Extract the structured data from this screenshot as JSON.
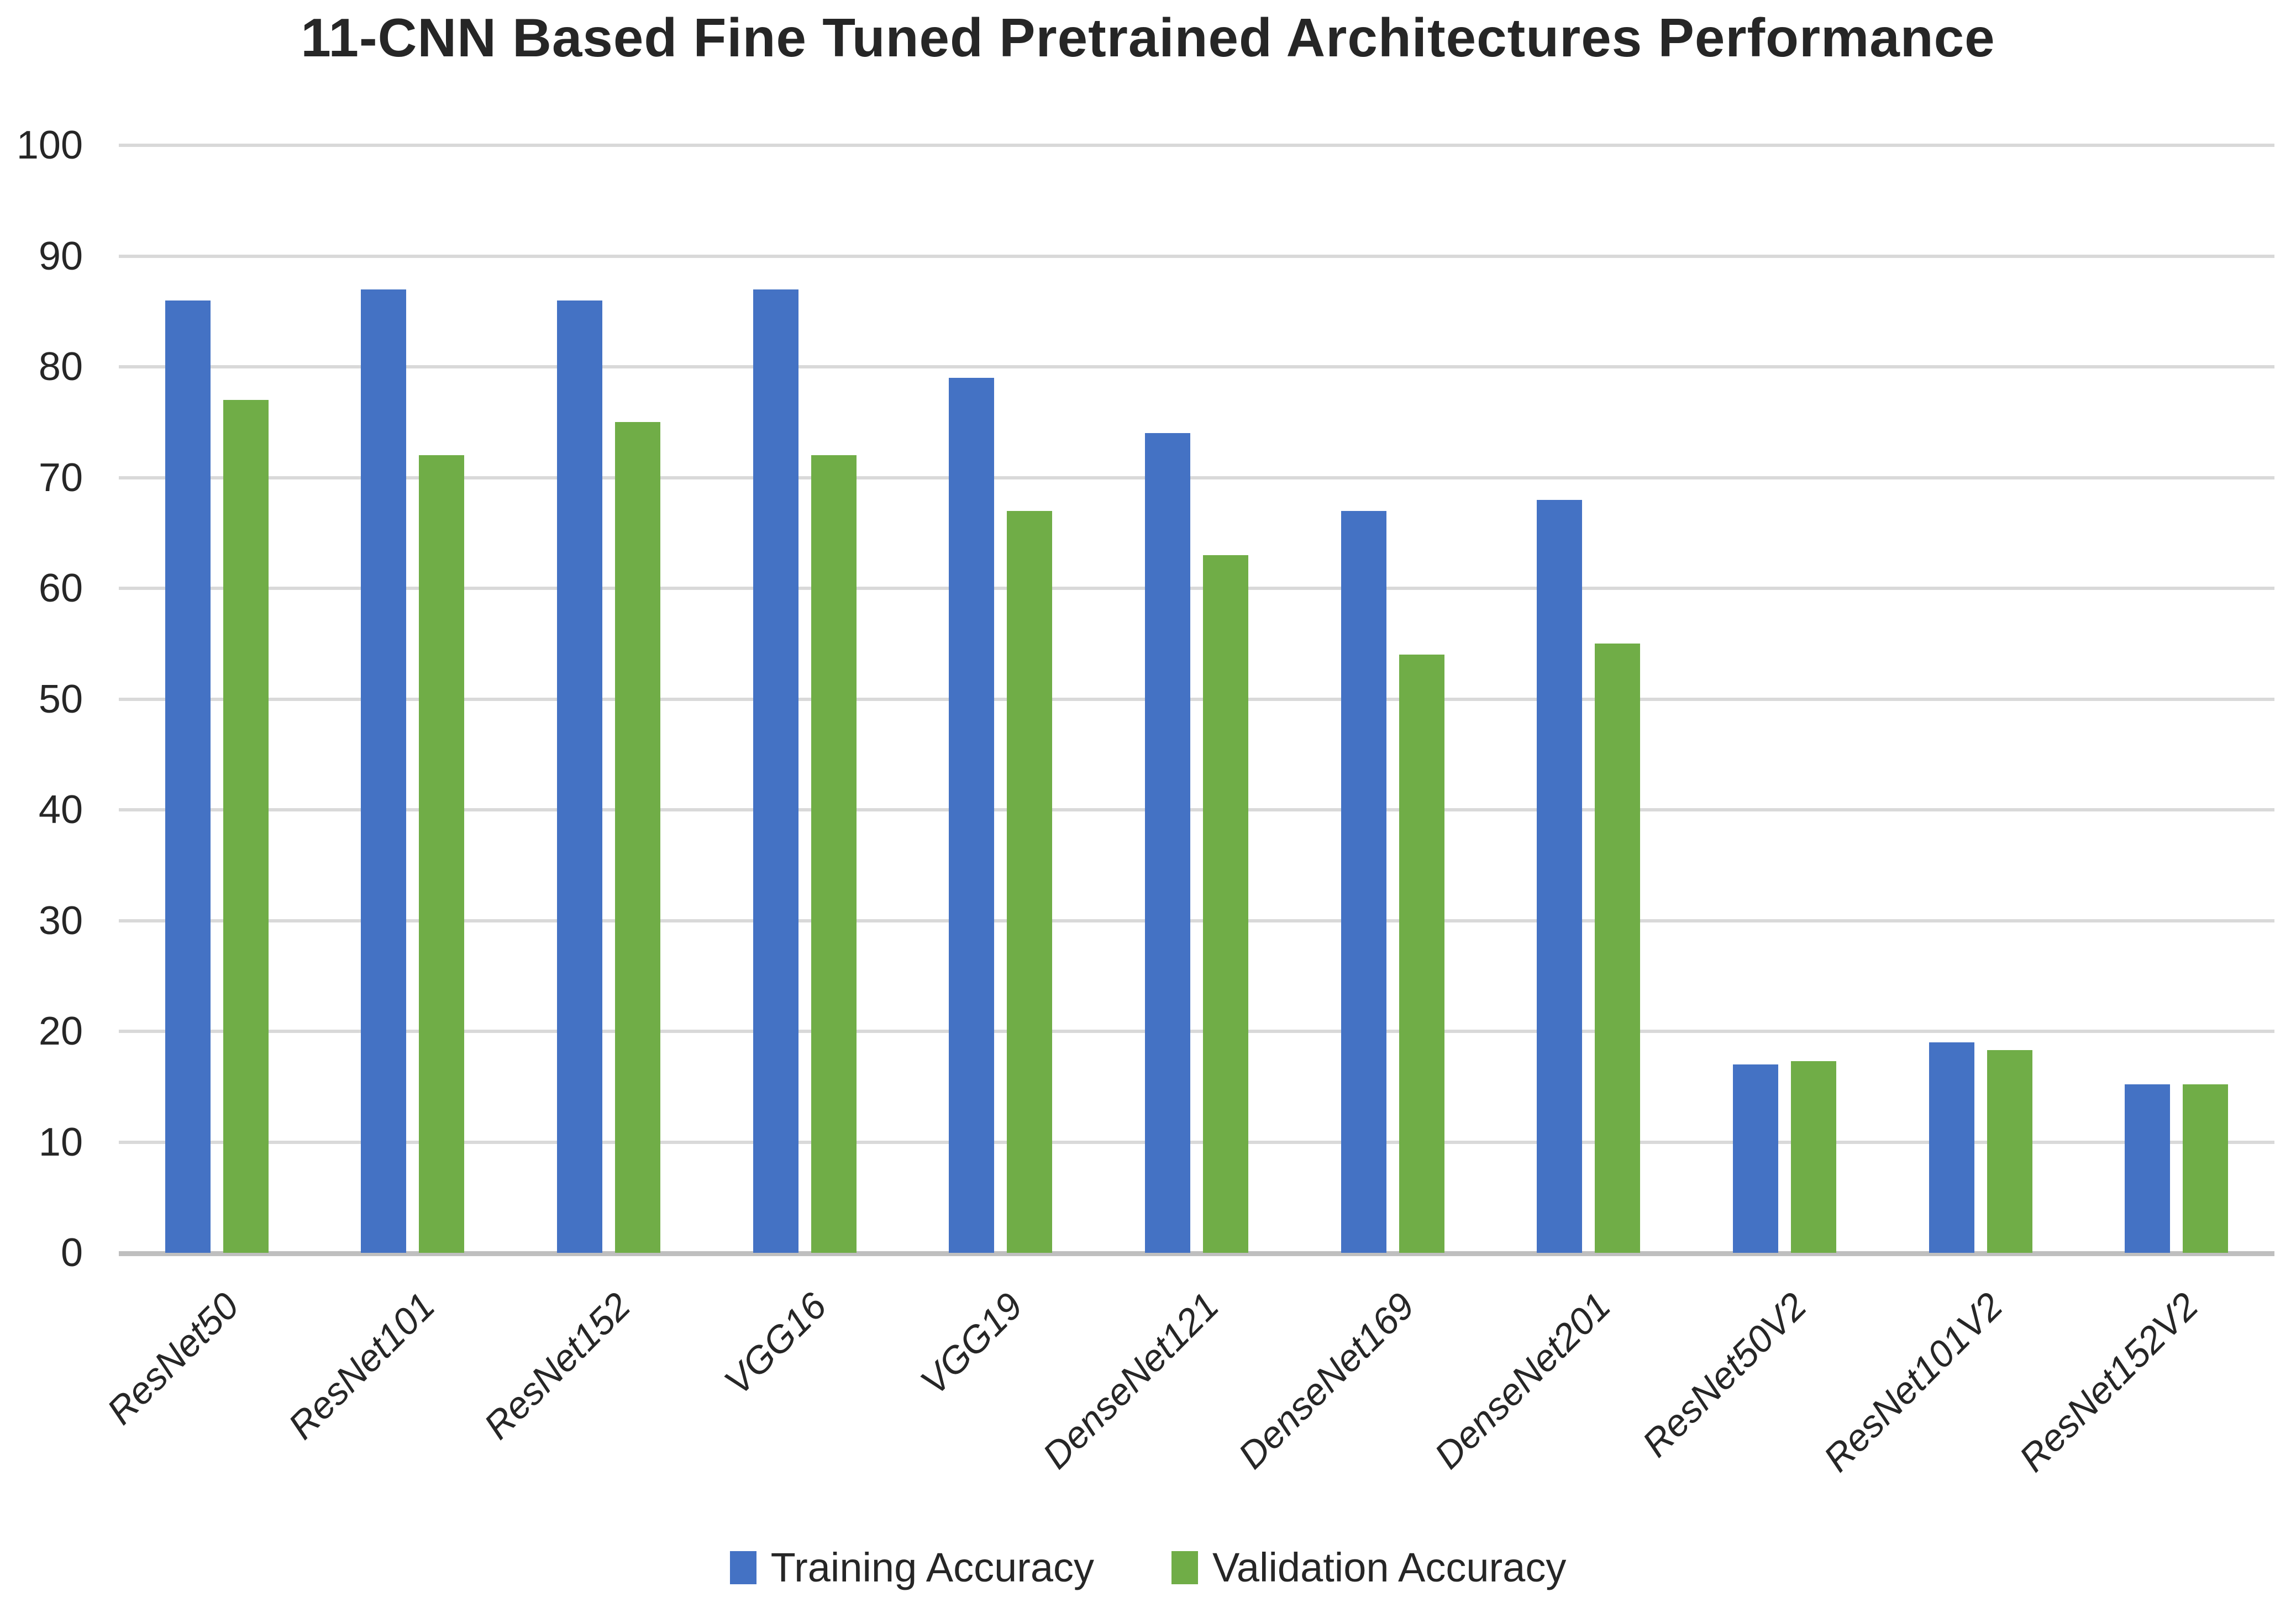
{
  "chart_data": {
    "type": "bar",
    "title": "11-CNN Based Fine Tuned Pretrained Architectures Performance",
    "categories": [
      "ResNet50",
      "ResNet101",
      "ResNet152",
      "VGG16",
      "VGG19",
      "DenseNet121",
      "DenseNet169",
      "DenseNet201",
      "ResNet50V2",
      "ResNet101V2",
      "ResNet152V2"
    ],
    "series": [
      {
        "name": "Training Accuracy",
        "color": "#4472C4",
        "values": [
          86,
          87,
          86,
          87,
          79,
          74,
          67,
          68,
          17,
          19,
          15.2
        ]
      },
      {
        "name": "Validation Accuracy",
        "color": "#70AD47",
        "values": [
          77,
          72,
          75,
          72,
          67,
          63,
          54,
          55,
          17.3,
          18.3,
          15.2
        ]
      }
    ],
    "xlabel": "",
    "ylabel": "",
    "ylim": [
      0,
      100
    ],
    "yticks": [
      0,
      10,
      20,
      30,
      40,
      50,
      60,
      70,
      80,
      90,
      100
    ],
    "grid": "horizontal",
    "legend_position": "bottom",
    "gridline_color": "#D9D9D9",
    "axis_line_color": "#BFBFBF",
    "text_color": "#262626",
    "background_color": "#FFFFFF"
  }
}
